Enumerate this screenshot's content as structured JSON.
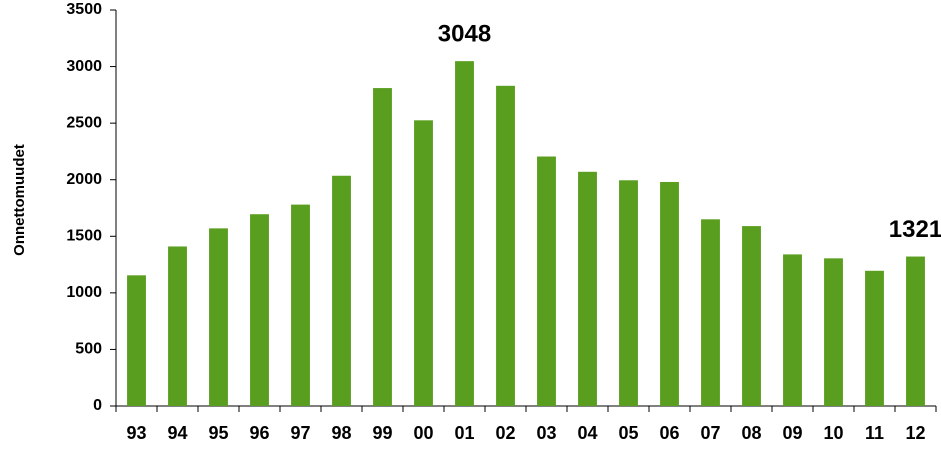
{
  "chart_data": {
    "type": "bar",
    "y_label": "Onnettomuudet",
    "categories": [
      "93",
      "94",
      "95",
      "96",
      "97",
      "98",
      "99",
      "00",
      "01",
      "02",
      "03",
      "04",
      "05",
      "06",
      "07",
      "08",
      "09",
      "10",
      "11",
      "12"
    ],
    "values": [
      1155,
      1410,
      1570,
      1695,
      1780,
      2035,
      2810,
      2525,
      3048,
      2830,
      2205,
      2070,
      1995,
      1980,
      1650,
      1590,
      1340,
      1305,
      1195,
      1321
    ],
    "color": "#5a9e1f",
    "ylim": [
      0,
      3500
    ],
    "yticks": [
      0,
      500,
      1000,
      1500,
      2000,
      2500,
      3000,
      3500
    ],
    "grid": false,
    "annotations": [
      {
        "category": "01",
        "text": "3048"
      },
      {
        "category": "12",
        "text": "1321"
      }
    ]
  }
}
